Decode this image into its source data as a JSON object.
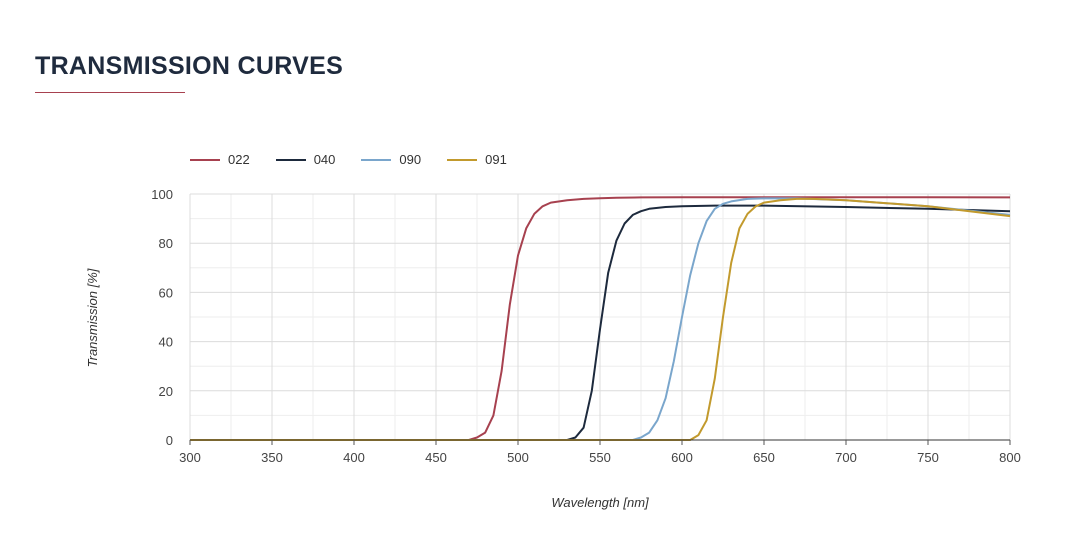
{
  "header": {
    "title": "TRANSMISSION CURVES"
  },
  "colors": {
    "title": "#1f2b3e",
    "rule": "#a7414f",
    "grid": "#dcdcdc"
  },
  "chart_data": {
    "type": "line",
    "title": "",
    "xlabel": "Wavelength [nm]",
    "ylabel": "Transmission [%]",
    "xlim": [
      300,
      800
    ],
    "ylim": [
      0,
      100
    ],
    "x_ticks": [
      300,
      350,
      400,
      450,
      500,
      550,
      600,
      650,
      700,
      750,
      800
    ],
    "y_ticks": [
      0,
      20,
      40,
      60,
      80,
      100
    ],
    "x_tick_labels": [
      "300",
      "350",
      "400",
      "450",
      "500",
      "550",
      "600",
      "650",
      "700",
      "750",
      "800"
    ],
    "y_tick_labels": [
      "0",
      "20",
      "40",
      "60",
      "80",
      "100"
    ],
    "grid": true,
    "legend_position": "top-left",
    "series": [
      {
        "name": "022",
        "color": "#a7414f",
        "x": [
          300,
          470,
          475,
          480,
          485,
          490,
          495,
          500,
          505,
          510,
          515,
          520,
          530,
          540,
          550,
          560,
          575,
          600,
          650,
          700,
          750,
          800
        ],
        "y": [
          0,
          0,
          1,
          3,
          10,
          28,
          55,
          75,
          86,
          92,
          95,
          96.5,
          97.5,
          98,
          98.3,
          98.5,
          98.6,
          98.7,
          98.7,
          98.7,
          98.7,
          98.6
        ]
      },
      {
        "name": "040",
        "color": "#1d2a3d",
        "x": [
          300,
          530,
          535,
          540,
          545,
          550,
          555,
          560,
          565,
          570,
          575,
          580,
          590,
          600,
          620,
          650,
          700,
          750,
          800
        ],
        "y": [
          0,
          0,
          1,
          5,
          20,
          45,
          68,
          81,
          88,
          91.5,
          93,
          94,
          94.7,
          95,
          95.3,
          95.3,
          94.7,
          94,
          93
        ]
      },
      {
        "name": "090",
        "color": "#7aa6cc",
        "x": [
          300,
          570,
          575,
          580,
          585,
          590,
          595,
          600,
          605,
          610,
          615,
          620,
          625,
          630,
          640,
          650,
          670,
          700,
          750,
          800
        ],
        "y": [
          0,
          0,
          1,
          3,
          8,
          17,
          32,
          50,
          67,
          80,
          89,
          94,
          96,
          97,
          98,
          98.2,
          98.2,
          97.5,
          95,
          91.5
        ]
      },
      {
        "name": "091",
        "color": "#c29a2d",
        "x": [
          300,
          605,
          610,
          615,
          620,
          625,
          630,
          635,
          640,
          645,
          650,
          660,
          670,
          680,
          700,
          750,
          800
        ],
        "y": [
          0,
          0,
          2,
          8,
          25,
          50,
          72,
          86,
          92,
          95,
          96.5,
          97.5,
          98,
          98,
          97.5,
          95,
          91
        ]
      }
    ]
  }
}
